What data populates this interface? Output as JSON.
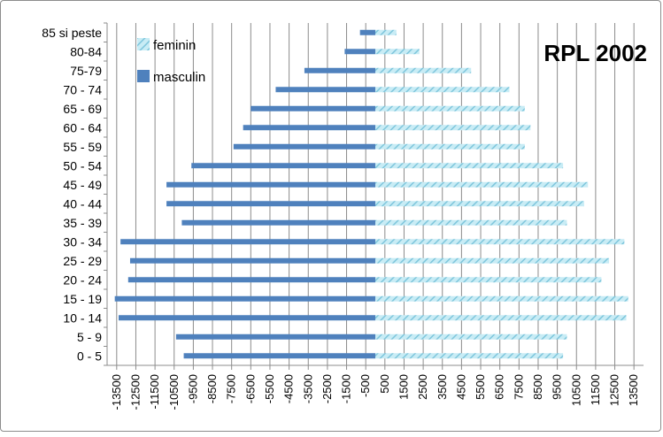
{
  "chart_data": {
    "type": "bar",
    "orientation": "horizontal",
    "layout": "population-pyramid",
    "title": "RPL 2002",
    "xlabel": "",
    "ylabel": "",
    "categories": [
      "0 - 5",
      "5 - 9",
      "10 - 14",
      "15 - 19",
      "20 - 24",
      "25 - 29",
      "30 - 34",
      "35 - 39",
      "40 - 44",
      "45 - 49",
      "50 - 54",
      "55 - 59",
      "60 - 64",
      "65 - 69",
      "70 - 74",
      "75-79",
      "80-84",
      "85 si peste"
    ],
    "x_ticks": [
      "-13500",
      "-12500",
      "-11500",
      "-10500",
      "-9500",
      "-8500",
      "-7500",
      "-6500",
      "-5500",
      "-4500",
      "-3500",
      "-2500",
      "-1500",
      "-500",
      "500",
      "1500",
      "2500",
      "3500",
      "4500",
      "5500",
      "6500",
      "7500",
      "8500",
      "9500",
      "10500",
      "11500",
      "12500",
      "13500"
    ],
    "xlim": [
      -14000,
      14000
    ],
    "grid": "vertical",
    "legend_position": "top-left",
    "series": [
      {
        "name": "feminin",
        "color": "#a9dbe9",
        "pattern": "diagonal-hatch",
        "values": [
          9800,
          10000,
          13100,
          13200,
          11800,
          12200,
          13000,
          10000,
          10900,
          11100,
          9800,
          7800,
          8100,
          7800,
          7000,
          5000,
          2300,
          1100
        ]
      },
      {
        "name": "masculin",
        "color": "#4f81bd",
        "pattern": "solid",
        "values": [
          -10000,
          -10400,
          -13400,
          -13600,
          -12900,
          -12800,
          -13300,
          -10100,
          -10900,
          -10900,
          -9600,
          -7400,
          -6900,
          -6500,
          -5200,
          -3700,
          -1600,
          -800
        ]
      }
    ]
  }
}
